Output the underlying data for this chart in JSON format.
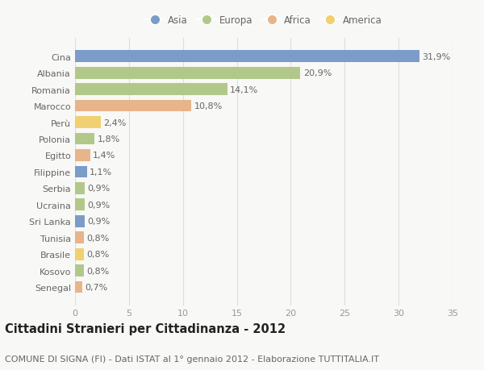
{
  "countries": [
    "Cina",
    "Albania",
    "Romania",
    "Marocco",
    "Perù",
    "Polonia",
    "Egitto",
    "Filippine",
    "Serbia",
    "Ucraina",
    "Sri Lanka",
    "Tunisia",
    "Brasile",
    "Kosovo",
    "Senegal"
  ],
  "values": [
    31.9,
    20.9,
    14.1,
    10.8,
    2.4,
    1.8,
    1.4,
    1.1,
    0.9,
    0.9,
    0.9,
    0.8,
    0.8,
    0.8,
    0.7
  ],
  "labels": [
    "31,9%",
    "20,9%",
    "14,1%",
    "10,8%",
    "2,4%",
    "1,8%",
    "1,4%",
    "1,1%",
    "0,9%",
    "0,9%",
    "0,9%",
    "0,8%",
    "0,8%",
    "0,8%",
    "0,7%"
  ],
  "continents": [
    "Asia",
    "Europa",
    "Europa",
    "Africa",
    "America",
    "Europa",
    "Africa",
    "Asia",
    "Europa",
    "Europa",
    "Asia",
    "Africa",
    "America",
    "Europa",
    "Africa"
  ],
  "continent_colors": {
    "Asia": "#7b9cc8",
    "Europa": "#b2c88a",
    "Africa": "#e8b48a",
    "America": "#f0d070"
  },
  "legend_order": [
    "Asia",
    "Europa",
    "Africa",
    "America"
  ],
  "title": "Cittadini Stranieri per Cittadinanza - 2012",
  "subtitle": "COMUNE DI SIGNA (FI) - Dati ISTAT al 1° gennaio 2012 - Elaborazione TUTTITALIA.IT",
  "xlim": [
    0,
    35
  ],
  "xticks": [
    0,
    5,
    10,
    15,
    20,
    25,
    30,
    35
  ],
  "background_color": "#f8f8f6",
  "bar_height": 0.72,
  "title_fontsize": 10.5,
  "subtitle_fontsize": 8,
  "tick_fontsize": 8,
  "label_fontsize": 8,
  "legend_fontsize": 8.5
}
